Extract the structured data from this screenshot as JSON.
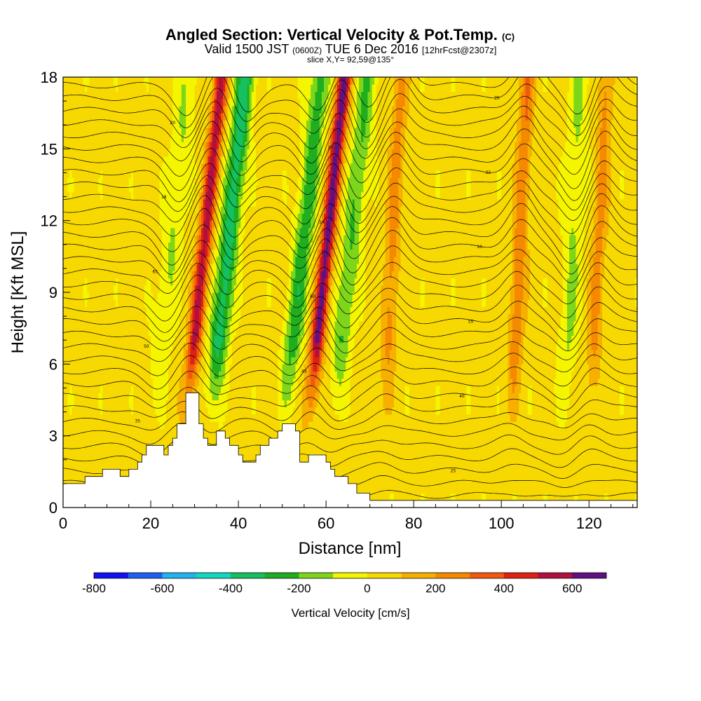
{
  "chart_data": {
    "type": "heatmap",
    "title": "Angled Section: Vertical Velocity & Pot.Temp.",
    "title_tag": "(C)",
    "subtitle_parts": [
      "Valid 1500 JST",
      "(0600Z)",
      "TUE 6 Dec 2016",
      "[12hrFcst@2307z]"
    ],
    "slice_label": "slice X,Y= 92,59@135°",
    "xlabel": "Distance [nm]",
    "ylabel": "Height [Kft MSL]",
    "xlim": [
      0,
      131
    ],
    "ylim": [
      0,
      18
    ],
    "x_ticks": [
      "0",
      "20",
      "40",
      "60",
      "80",
      "100",
      "120"
    ],
    "y_ticks": [
      "0",
      "3",
      "6",
      "9",
      "12",
      "15",
      "18"
    ],
    "colorbar": {
      "label": "Vertical Velocity [cm/s]",
      "range": [
        -800,
        700
      ],
      "step": 100,
      "tick_labels": [
        "-800",
        "-600",
        "-400",
        "-200",
        "0",
        "200",
        "400",
        "600"
      ],
      "colors": [
        "#1010f0",
        "#1f5ef5",
        "#1fb3f0",
        "#10d9c0",
        "#14c060",
        "#1fae1f",
        "#7ed61a",
        "#f5f500",
        "#f7d800",
        "#f7b000",
        "#f58a00",
        "#f05a10",
        "#e02010",
        "#b01040",
        "#601080"
      ]
    },
    "updrafts": [
      {
        "center_x": 29.5,
        "peak": 500
      },
      {
        "center_x": 57.5,
        "peak": 600
      },
      {
        "center_x": 74,
        "peak": 200
      },
      {
        "center_x": 103,
        "peak": 250
      },
      {
        "center_x": 121,
        "peak": 200
      }
    ],
    "downdrafts": [
      {
        "center_x": 35,
        "peak": -400
      },
      {
        "center_x": 52,
        "peak": -300
      },
      {
        "center_x": 63,
        "peak": -250
      },
      {
        "center_x": 22,
        "peak": -150
      },
      {
        "center_x": 115,
        "peak": -150
      }
    ],
    "terrain": [
      [
        0,
        1
      ],
      [
        5,
        1
      ],
      [
        5,
        1.3
      ],
      [
        9,
        1.3
      ],
      [
        9,
        1.6
      ],
      [
        13,
        1.6
      ],
      [
        13,
        1.3
      ],
      [
        15,
        1.3
      ],
      [
        15,
        1.6
      ],
      [
        17,
        1.6
      ],
      [
        17,
        1.9
      ],
      [
        18,
        1.9
      ],
      [
        18,
        2.2
      ],
      [
        19,
        2.2
      ],
      [
        19,
        2.6
      ],
      [
        23,
        2.6
      ],
      [
        23,
        2.2
      ],
      [
        24,
        2.2
      ],
      [
        24,
        2.6
      ],
      [
        25,
        2.6
      ],
      [
        25,
        2.9
      ],
      [
        26,
        2.9
      ],
      [
        26,
        3.5
      ],
      [
        28,
        3.5
      ],
      [
        28,
        4.8
      ],
      [
        31,
        4.8
      ],
      [
        31,
        3.5
      ],
      [
        32,
        3.5
      ],
      [
        32,
        2.9
      ],
      [
        33,
        2.9
      ],
      [
        33,
        2.6
      ],
      [
        35,
        2.6
      ],
      [
        35,
        3.2
      ],
      [
        37,
        3.2
      ],
      [
        37,
        2.9
      ],
      [
        38,
        2.9
      ],
      [
        38,
        2.6
      ],
      [
        40,
        2.6
      ],
      [
        40,
        2.2
      ],
      [
        41,
        2.2
      ],
      [
        41,
        1.9
      ],
      [
        44,
        1.9
      ],
      [
        44,
        2.2
      ],
      [
        45,
        2.2
      ],
      [
        45,
        2.6
      ],
      [
        47,
        2.6
      ],
      [
        47,
        2.9
      ],
      [
        49,
        2.9
      ],
      [
        49,
        3.2
      ],
      [
        50,
        3.2
      ],
      [
        50,
        3.5
      ],
      [
        53,
        3.5
      ],
      [
        53,
        3.2
      ],
      [
        54,
        3.2
      ],
      [
        54,
        1.9
      ],
      [
        56,
        1.9
      ],
      [
        56,
        2.2
      ],
      [
        58,
        2.2
      ],
      [
        58,
        2.2
      ],
      [
        60,
        2.2
      ],
      [
        60,
        1.9
      ],
      [
        61,
        1.9
      ],
      [
        61,
        1.6
      ],
      [
        62,
        1.6
      ],
      [
        62,
        1.3
      ],
      [
        65,
        1.3
      ],
      [
        65,
        1
      ],
      [
        67,
        1
      ],
      [
        67,
        0.6
      ],
      [
        70,
        0.6
      ],
      [
        70,
        0.3
      ],
      [
        131,
        0.3
      ]
    ],
    "isentrope_labels": [
      "20",
      "25",
      "30",
      "35",
      "40",
      "45",
      "50",
      "55",
      "60",
      "65",
      "10",
      "14",
      "18",
      "22",
      "26"
    ]
  }
}
